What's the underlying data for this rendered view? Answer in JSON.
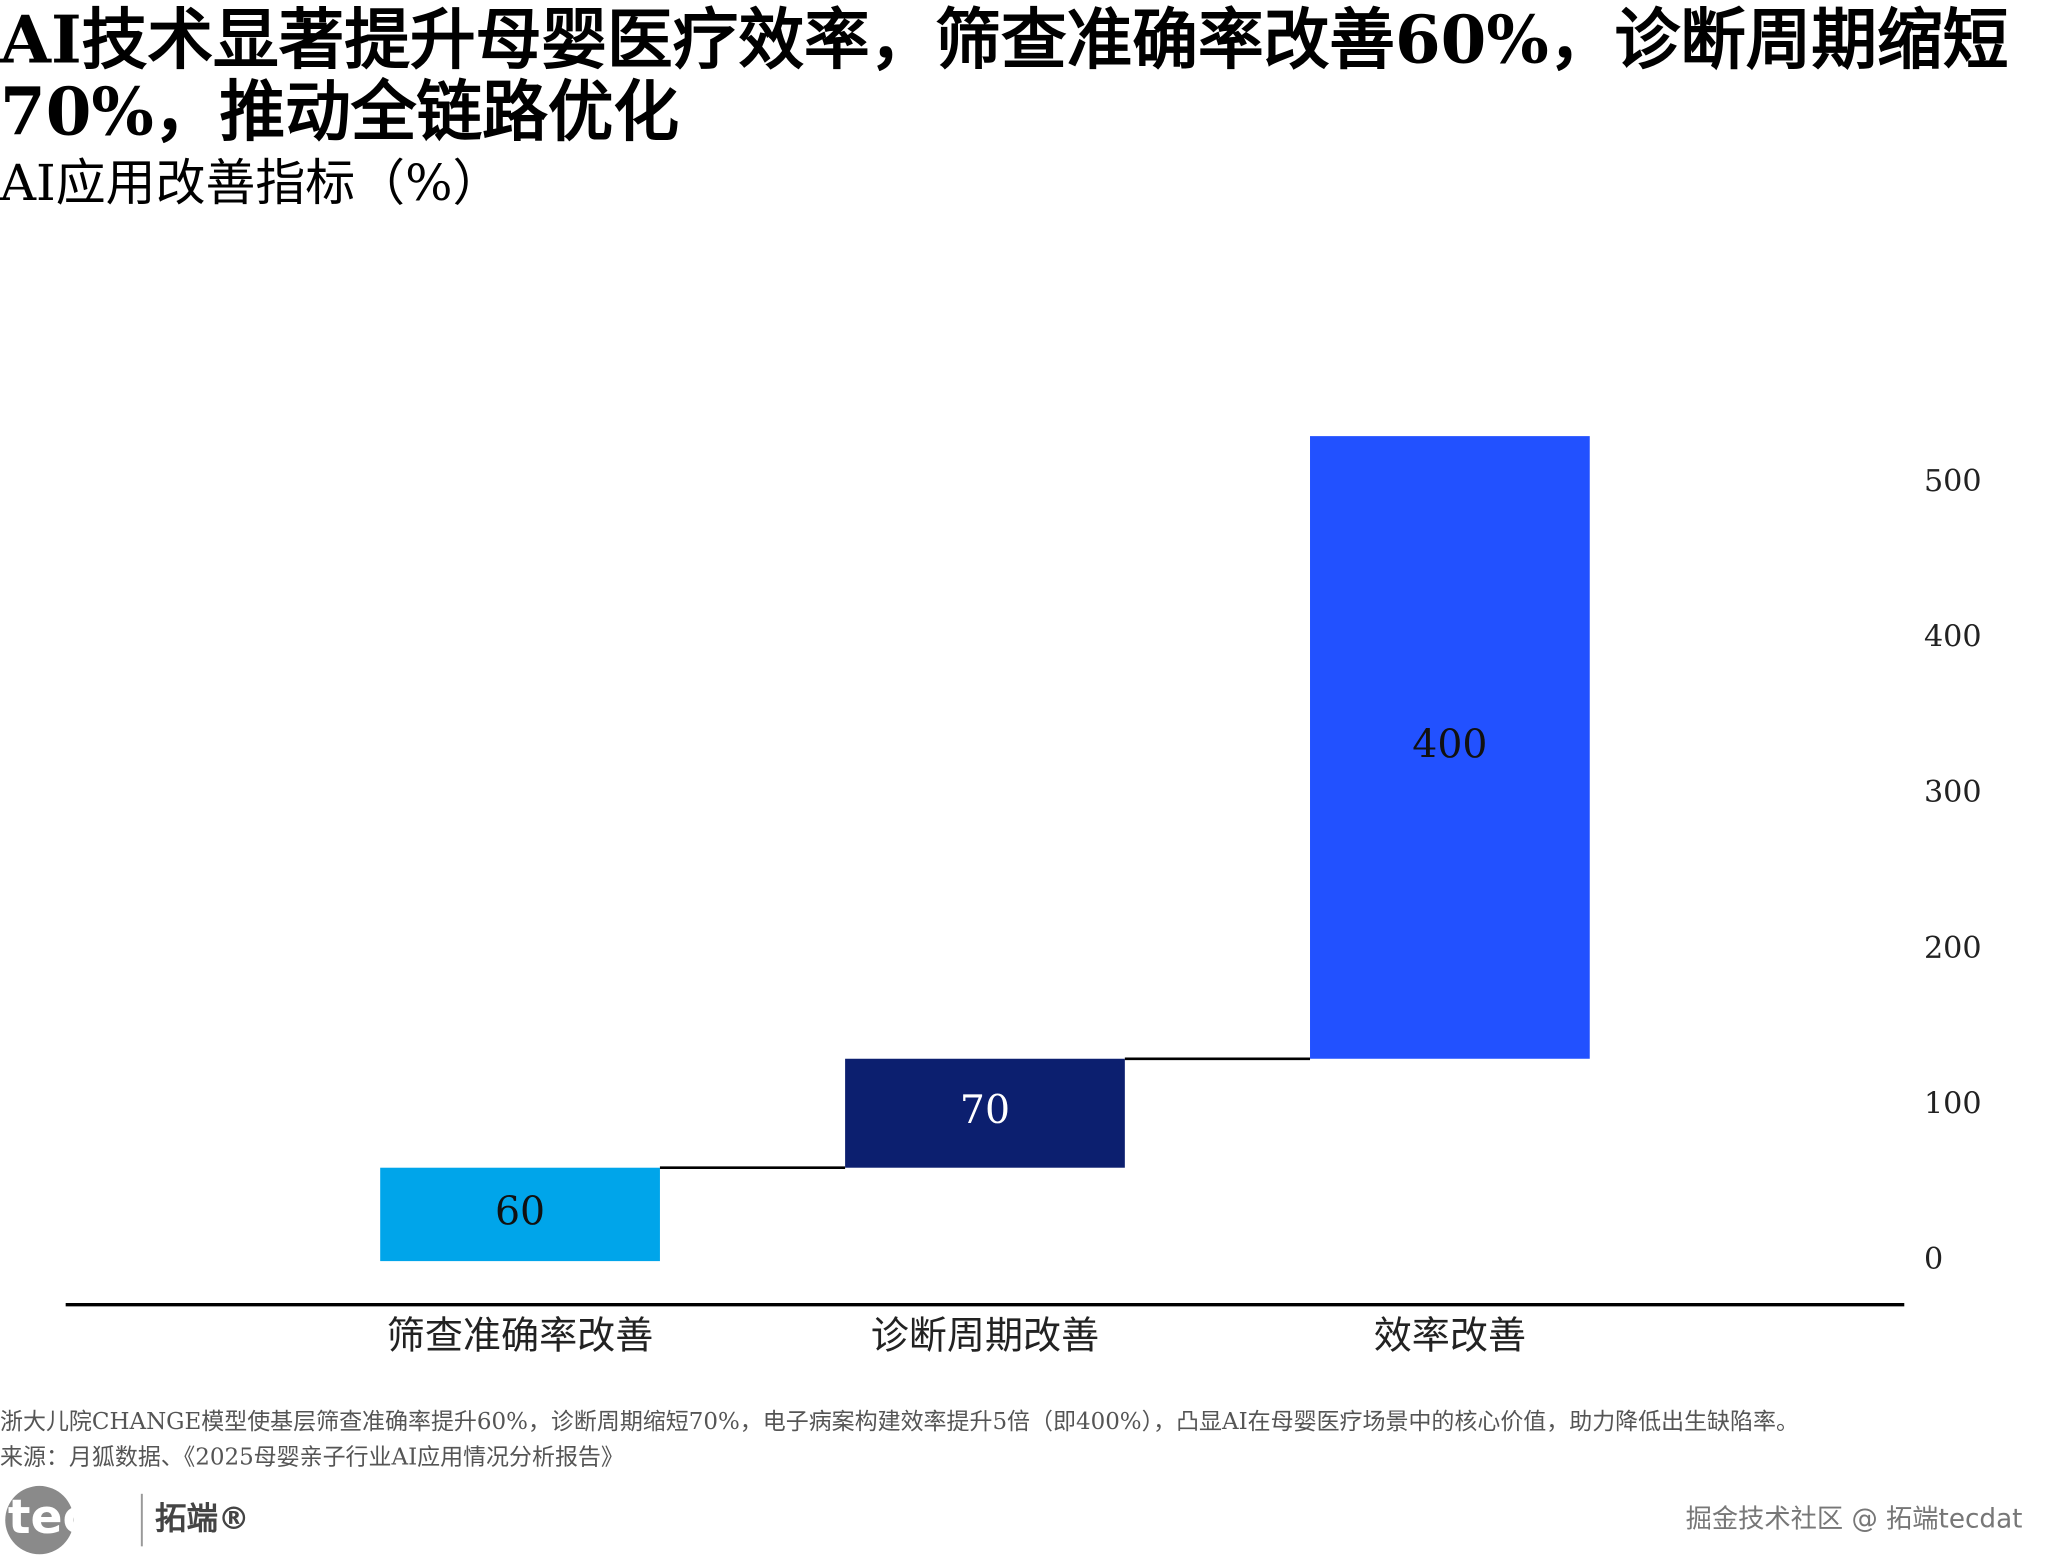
{
  "chart_data": {
    "type": "waterfall",
    "title": "AI技术显著提升母婴医疗效率，筛查准确率改善60%，诊断周期缩短70%，推动全链路优化",
    "subtitle": "AI应用改善指标（%）",
    "categories": [
      "筛查准确率改善",
      "诊断周期改善",
      "效率改善"
    ],
    "values": [
      60,
      70,
      400
    ],
    "colors": [
      "#00a5ea",
      "#0c1f6f",
      "#2251ff"
    ],
    "ylim": [
      -28,
      555
    ],
    "yticks": [
      0,
      100,
      200,
      300,
      400,
      500
    ],
    "y_axis_side": "right",
    "grid": false,
    "note": "浙大儿院CHANGE模型使基层筛查准确率提升60%，诊断周期缩短70%，电子病案构建效率提升5倍（即400%），凸显AI在母婴医疗场景中的核心价值，助力降低出生缺陷率。",
    "source": "来源：月狐数据、《2025母婴亲子行业AI应用情况分析报告》"
  },
  "logo": {
    "mark": "tecdat",
    "name": "拓端®"
  },
  "watermark": "掘金技术社区 @ 拓端tecdat"
}
